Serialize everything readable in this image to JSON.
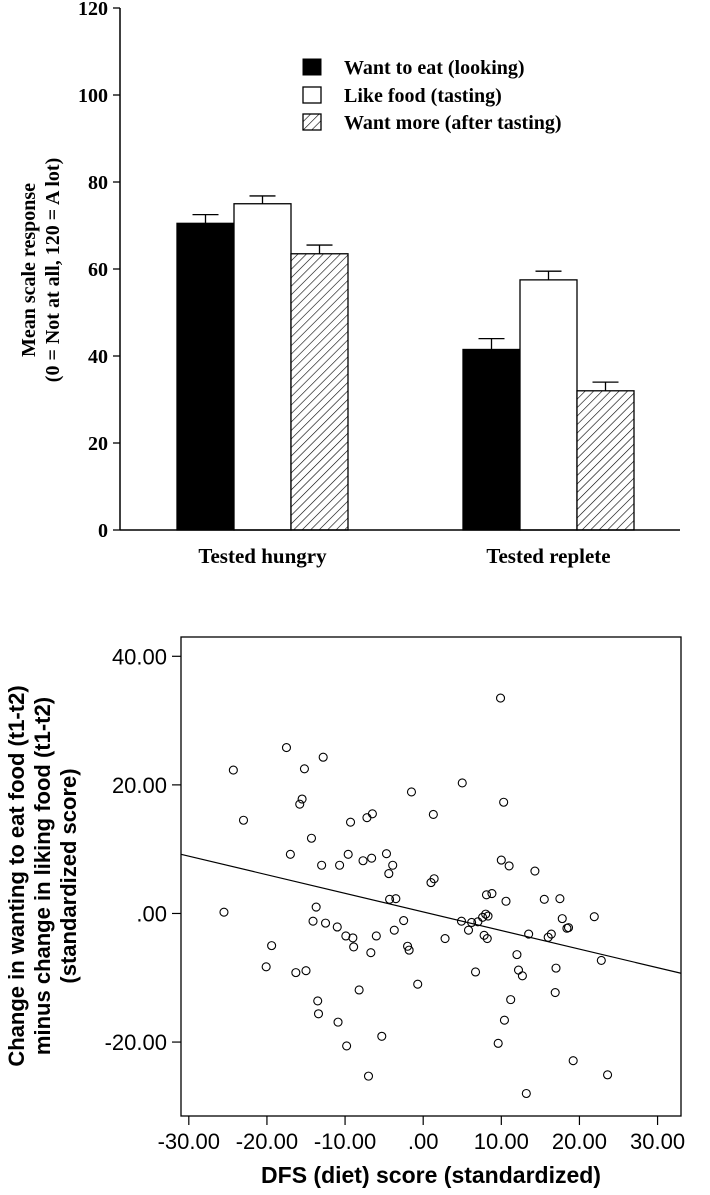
{
  "chart_data": [
    {
      "type": "bar",
      "ylabel_line1": "Mean scale response",
      "ylabel_line2": "(0 = Not at all, 120 = A lot)",
      "ylim": [
        0,
        120
      ],
      "yticks": [
        "0",
        "20",
        "40",
        "60",
        "80",
        "100",
        "120"
      ],
      "categories": [
        "Tested hungry",
        "Tested replete"
      ],
      "legend_position": "top-right",
      "series": [
        {
          "name": "Want to eat (looking)",
          "values": [
            70.5,
            41.5
          ],
          "errors": [
            2.0,
            2.5
          ],
          "style": "solid",
          "color": "#000000"
        },
        {
          "name": "Like food (tasting)",
          "values": [
            75.0,
            57.5
          ],
          "errors": [
            1.8,
            2.0
          ],
          "style": "open",
          "color": "#ffffff"
        },
        {
          "name": "Want more (after tasting)",
          "values": [
            63.5,
            32.0
          ],
          "errors": [
            2.0,
            2.0
          ],
          "style": "hatched",
          "color": "#ffffff"
        }
      ]
    },
    {
      "type": "scatter",
      "xlabel": "DFS (diet) score (standardized)",
      "ylabel_line1": "Change in wanting to eat food (t1-t2)",
      "ylabel_line2": "minus change in liking food (t1-t2)",
      "ylabel_line3": "(standardized score)",
      "xlim": [
        -31,
        33
      ],
      "ylim": [
        -31.5,
        43
      ],
      "xticks": [
        "-30.00",
        "-20.00",
        "-10.00",
        ".00",
        "10.00",
        "20.00",
        "30.00"
      ],
      "yticks": [
        "-20.00",
        ".00",
        "20.00",
        "40.00"
      ],
      "fit_line": [
        [
          -31,
          9.2
        ],
        [
          33,
          -9.3
        ]
      ],
      "points": [
        [
          -25.5,
          0.2
        ],
        [
          -24.3,
          22.3
        ],
        [
          -23.0,
          14.5
        ],
        [
          -20.1,
          -8.3
        ],
        [
          -19.4,
          -5.0
        ],
        [
          -17.5,
          25.8
        ],
        [
          -17.0,
          9.2
        ],
        [
          -16.3,
          -9.2
        ],
        [
          -15.8,
          17.0
        ],
        [
          -15.5,
          17.8
        ],
        [
          -15.2,
          22.5
        ],
        [
          -15.0,
          -8.9
        ],
        [
          -14.3,
          11.7
        ],
        [
          -14.1,
          -1.2
        ],
        [
          -13.7,
          1.0
        ],
        [
          -13.5,
          -13.6
        ],
        [
          -13.4,
          -15.6
        ],
        [
          -13.0,
          7.5
        ],
        [
          -12.8,
          24.3
        ],
        [
          -12.5,
          -1.5
        ],
        [
          -11.0,
          -2.1
        ],
        [
          -10.9,
          -16.9
        ],
        [
          -10.7,
          7.5
        ],
        [
          -9.9,
          -3.5
        ],
        [
          -9.8,
          -20.6
        ],
        [
          -9.6,
          9.2
        ],
        [
          -9.3,
          14.2
        ],
        [
          -9.0,
          -3.8
        ],
        [
          -8.9,
          -5.2
        ],
        [
          -8.2,
          -11.9
        ],
        [
          -7.7,
          8.2
        ],
        [
          -7.2,
          14.9
        ],
        [
          -7.0,
          -25.3
        ],
        [
          -6.7,
          -6.1
        ],
        [
          -6.6,
          8.6
        ],
        [
          -6.5,
          15.5
        ],
        [
          -6.0,
          -3.5
        ],
        [
          -5.3,
          -19.1
        ],
        [
          -4.7,
          9.3
        ],
        [
          -4.4,
          6.2
        ],
        [
          -4.3,
          2.2
        ],
        [
          -3.9,
          7.5
        ],
        [
          -3.7,
          -2.6
        ],
        [
          -3.5,
          2.3
        ],
        [
          -2.5,
          -1.1
        ],
        [
          -2.0,
          -5.1
        ],
        [
          -1.8,
          -5.7
        ],
        [
          -1.5,
          18.9
        ],
        [
          -0.7,
          -11.0
        ],
        [
          1.0,
          4.8
        ],
        [
          1.3,
          15.4
        ],
        [
          1.4,
          5.4
        ],
        [
          2.8,
          -3.9
        ],
        [
          4.9,
          -1.2
        ],
        [
          5.0,
          20.3
        ],
        [
          5.8,
          -2.6
        ],
        [
          6.2,
          -1.4
        ],
        [
          6.7,
          -9.1
        ],
        [
          7.0,
          -1.3
        ],
        [
          7.6,
          -0.6
        ],
        [
          7.8,
          -3.4
        ],
        [
          8.0,
          -0.1
        ],
        [
          8.1,
          2.9
        ],
        [
          8.2,
          -3.9
        ],
        [
          8.3,
          -0.4
        ],
        [
          8.8,
          3.1
        ],
        [
          9.6,
          -20.2
        ],
        [
          9.9,
          33.5
        ],
        [
          10.0,
          8.3
        ],
        [
          10.3,
          17.3
        ],
        [
          10.4,
          -16.6
        ],
        [
          10.6,
          1.9
        ],
        [
          11.0,
          7.4
        ],
        [
          11.2,
          -13.4
        ],
        [
          12.0,
          -6.4
        ],
        [
          12.2,
          -8.8
        ],
        [
          12.7,
          -9.7
        ],
        [
          13.2,
          -28.0
        ],
        [
          13.5,
          -3.2
        ],
        [
          14.3,
          6.6
        ],
        [
          15.5,
          2.2
        ],
        [
          16.0,
          -3.7
        ],
        [
          16.4,
          -3.2
        ],
        [
          16.9,
          -12.3
        ],
        [
          17.0,
          -8.5
        ],
        [
          17.5,
          2.3
        ],
        [
          17.8,
          -0.8
        ],
        [
          18.4,
          -2.3
        ],
        [
          18.6,
          -2.2
        ],
        [
          19.2,
          -22.9
        ],
        [
          21.9,
          -0.5
        ],
        [
          22.8,
          -7.3
        ],
        [
          23.6,
          -25.1
        ]
      ]
    }
  ]
}
